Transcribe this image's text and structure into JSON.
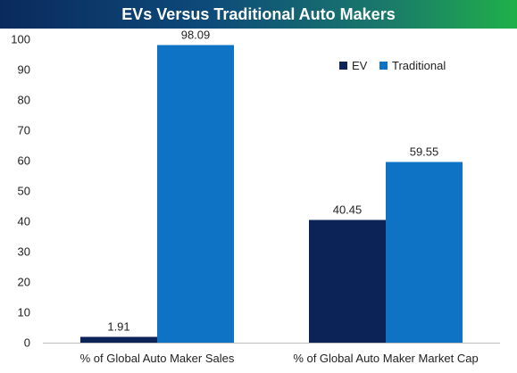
{
  "chart_data": {
    "type": "bar",
    "title": "EVs Versus Traditional Auto Makers",
    "categories": [
      "% of Global Auto Maker Sales",
      "% of Global Auto Maker Market Cap"
    ],
    "series": [
      {
        "name": "EV",
        "values": [
          1.91,
          40.45
        ],
        "color": "#0c2358"
      },
      {
        "name": "Traditional",
        "values": [
          98.09,
          59.55
        ],
        "color": "#0e72c5"
      }
    ],
    "data_labels": [
      [
        "1.91",
        "40.45"
      ],
      [
        "98.09",
        "59.55"
      ]
    ],
    "yticks": [
      "0",
      "10",
      "20",
      "30",
      "40",
      "50",
      "60",
      "70",
      "80",
      "90",
      "100"
    ],
    "ylim": [
      0,
      100
    ],
    "grid": false,
    "legend_position": "top-right"
  }
}
